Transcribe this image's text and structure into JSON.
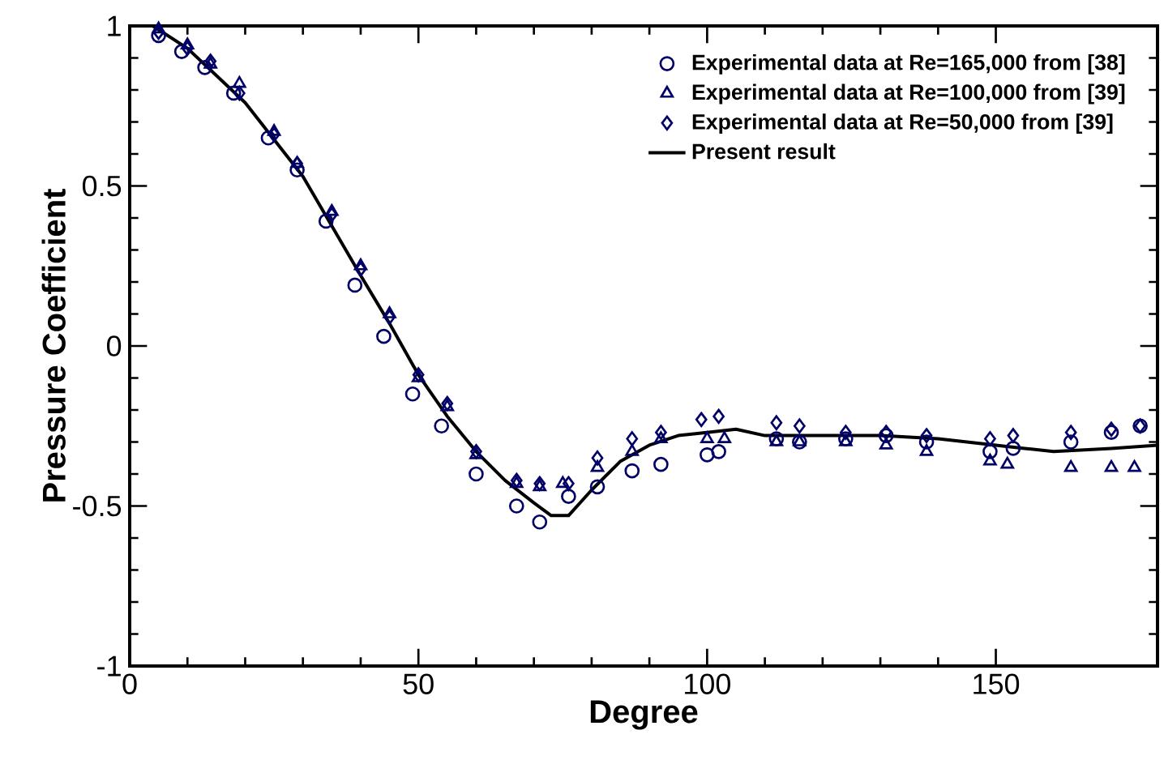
{
  "chart_data": {
    "type": "scatter",
    "xlabel": "Degree",
    "ylabel": "Pressure Coefficient",
    "xlim": [
      0,
      178
    ],
    "ylim": [
      -1,
      1
    ],
    "xticks": [
      0,
      50,
      100,
      150
    ],
    "yticks": [
      {
        "value": -1,
        "label": "-1"
      },
      {
        "value": -0.5,
        "label": "-0.5"
      },
      {
        "value": 0,
        "label": "0"
      },
      {
        "value": 0.5,
        "label": "0.5"
      },
      {
        "value": 1,
        "label": "1"
      }
    ],
    "grid": false,
    "legend": "top right",
    "series": [
      {
        "name": "Experimental data at Re=165,000 from [38]",
        "marker": "circle",
        "color": "#000066",
        "x": [
          5,
          9,
          13,
          18,
          24,
          29,
          34,
          39,
          44,
          49,
          54,
          60,
          67,
          71,
          76,
          81,
          87,
          92,
          100,
          102,
          112,
          116,
          124,
          131,
          138,
          149,
          153,
          163,
          170,
          175
        ],
        "values": [
          0.97,
          0.92,
          0.87,
          0.79,
          0.65,
          0.55,
          0.39,
          0.19,
          0.03,
          -0.15,
          -0.25,
          -0.4,
          -0.5,
          -0.55,
          -0.47,
          -0.44,
          -0.39,
          -0.37,
          -0.34,
          -0.33,
          -0.29,
          -0.3,
          -0.29,
          -0.28,
          -0.3,
          -0.33,
          -0.32,
          -0.3,
          -0.27,
          -0.25
        ]
      },
      {
        "name": "Experimental data at Re=100,000 from [39]",
        "marker": "triangle",
        "color": "#000066",
        "x": [
          5,
          10,
          14,
          19,
          25,
          29,
          35,
          40,
          45,
          50,
          55,
          60,
          67,
          71,
          75,
          81,
          87,
          92,
          100,
          103,
          112,
          116,
          124,
          131,
          138,
          149,
          152,
          163,
          170,
          174
        ],
        "values": [
          0.99,
          0.94,
          0.88,
          0.82,
          0.67,
          0.57,
          0.42,
          0.25,
          0.1,
          -0.1,
          -0.19,
          -0.34,
          -0.43,
          -0.44,
          -0.43,
          -0.38,
          -0.33,
          -0.29,
          -0.29,
          -0.29,
          -0.3,
          -0.3,
          -0.3,
          -0.31,
          -0.33,
          -0.36,
          -0.37,
          -0.38,
          -0.38,
          -0.38
        ]
      },
      {
        "name": "Experimental data at Re=50,000 from [39]",
        "marker": "diamond",
        "color": "#000066",
        "x": [
          5,
          10,
          14,
          19,
          25,
          29,
          35,
          40,
          45,
          50,
          55,
          60,
          67,
          71,
          76,
          81,
          87,
          92,
          99,
          102,
          112,
          116,
          124,
          131,
          138,
          149,
          153,
          163,
          170,
          175
        ],
        "values": [
          0.98,
          0.93,
          0.89,
          0.79,
          0.66,
          0.57,
          0.41,
          0.24,
          0.09,
          -0.09,
          -0.18,
          -0.33,
          -0.42,
          -0.43,
          -0.43,
          -0.35,
          -0.29,
          -0.27,
          -0.23,
          -0.22,
          -0.24,
          -0.25,
          -0.27,
          -0.27,
          -0.28,
          -0.29,
          -0.28,
          -0.27,
          -0.26,
          -0.25
        ]
      },
      {
        "name": "Present result",
        "type": "line",
        "marker": "none",
        "line_style": "solid",
        "color": "#000000",
        "x": [
          4,
          10,
          20,
          30,
          40,
          45,
          50,
          55,
          60,
          65,
          70,
          73,
          76,
          80,
          85,
          90,
          95,
          100,
          105,
          110,
          120,
          130,
          140,
          150,
          155,
          160,
          170,
          178
        ],
        "values": [
          1.0,
          0.93,
          0.76,
          0.53,
          0.22,
          0.07,
          -0.09,
          -0.22,
          -0.33,
          -0.42,
          -0.49,
          -0.53,
          -0.53,
          -0.45,
          -0.36,
          -0.31,
          -0.28,
          -0.27,
          -0.26,
          -0.28,
          -0.28,
          -0.28,
          -0.29,
          -0.31,
          -0.32,
          -0.33,
          -0.32,
          -0.31
        ]
      }
    ]
  }
}
